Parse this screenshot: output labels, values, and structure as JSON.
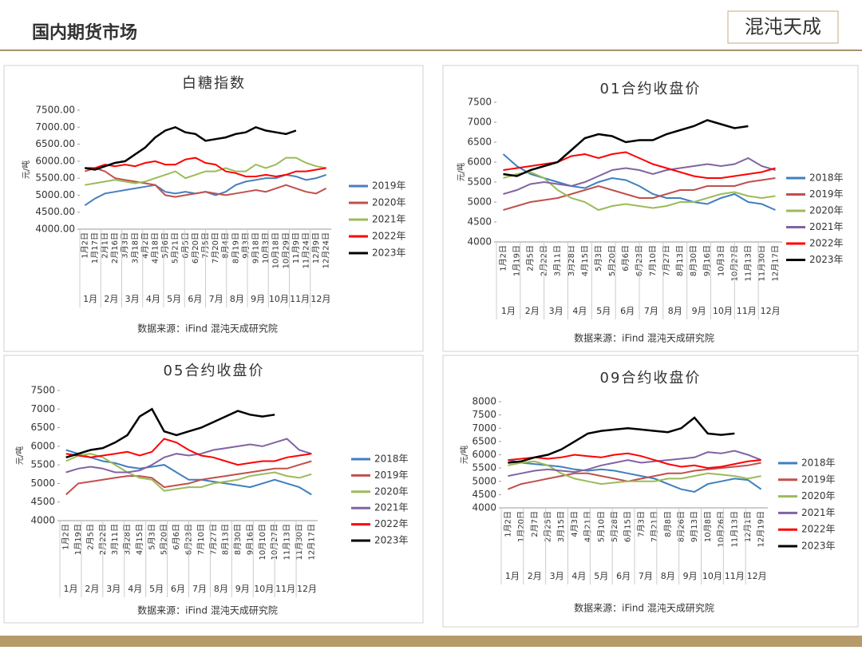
{
  "header": {
    "title": "国内期货市场",
    "logo": "混沌天成"
  },
  "chart_data": [
    {
      "type": "line",
      "title": "白糖指数",
      "y_label": "元/吨",
      "source": "数据来源：iFind 混沌天成研究院",
      "categories": [
        "1月2日",
        "1月17日",
        "2月1日",
        "2月16日",
        "3月3日",
        "3月18日",
        "4月2日",
        "4月18日",
        "5月6日",
        "5月21日",
        "6月5日",
        "6月20日",
        "7月5日",
        "7月20日",
        "8月4日",
        "8月19日",
        "9月3日",
        "9月18日",
        "10月3日",
        "10月18日",
        "10月29日",
        "11月9日",
        "11月24日",
        "12月9日",
        "12月24日"
      ],
      "month_labels": [
        "1月",
        "2月",
        "3月",
        "4月",
        "5月",
        "6月",
        "7月",
        "8月",
        "9月",
        "10月",
        "11月",
        "12月"
      ],
      "ylim": [
        4000,
        7500
      ],
      "yticks": [
        {
          "value": 4000,
          "label": "4000.00"
        },
        {
          "value": 4500,
          "label": "4500.00"
        },
        {
          "value": 5000,
          "label": "5000.00"
        },
        {
          "value": 5500,
          "label": "5500.00"
        },
        {
          "value": 6000,
          "label": "6000.00"
        },
        {
          "value": 6500,
          "label": "6500.00"
        },
        {
          "value": 7000,
          "label": "7000.00"
        },
        {
          "value": 7500,
          "label": "7500.00"
        }
      ],
      "series": [
        {
          "name": "2019年",
          "color": "#4a7ebb",
          "values": [
            4700,
            4900,
            5050,
            5100,
            5150,
            5200,
            5250,
            5300,
            5100,
            5050,
            5100,
            5050,
            5100,
            5000,
            5100,
            5300,
            5400,
            5450,
            5500,
            5500,
            5600,
            5550,
            5450,
            5500,
            5600
          ]
        },
        {
          "name": "2020年",
          "color": "#c0504d",
          "values": [
            5700,
            5800,
            5700,
            5500,
            5450,
            5400,
            5350,
            5300,
            5000,
            4950,
            5000,
            5050,
            5100,
            5050,
            5000,
            5050,
            5100,
            5150,
            5100,
            5200,
            5300,
            5200,
            5100,
            5050,
            5200
          ]
        },
        {
          "name": "2021年",
          "color": "#9bbb59",
          "values": [
            5300,
            5350,
            5400,
            5450,
            5400,
            5350,
            5400,
            5500,
            5600,
            5700,
            5500,
            5600,
            5700,
            5700,
            5800,
            5700,
            5700,
            5900,
            5800,
            5900,
            6100,
            6100,
            5950,
            5850,
            5800
          ]
        },
        {
          "name": "2022年",
          "color": "#ff0000",
          "values": [
            5800,
            5800,
            5900,
            5850,
            5900,
            5850,
            5950,
            6000,
            5900,
            5900,
            6050,
            6100,
            5950,
            5900,
            5700,
            5650,
            5550,
            5550,
            5600,
            5550,
            5600,
            5700,
            5700,
            5750,
            5800
          ]
        },
        {
          "name": "2023年",
          "color": "#000000",
          "values": [
            5800,
            5750,
            5850,
            5950,
            6000,
            6200,
            6400,
            6700,
            6900,
            7000,
            6850,
            6800,
            6600,
            6650,
            6700,
            6800,
            6850,
            7000,
            6900,
            6850,
            6800,
            6900,
            null,
            null,
            null
          ]
        }
      ]
    },
    {
      "type": "line",
      "title": "01合约收盘价",
      "y_label": "元/吨",
      "source": "数据来源：iFind 混沌天成研究院",
      "categories": [
        "1月2日",
        "1月19日",
        "2月5日",
        "2月22日",
        "3月11日",
        "3月28日",
        "4月15日",
        "5月3日",
        "5月20日",
        "6月6日",
        "6月23日",
        "7月10日",
        "7月27日",
        "8月13日",
        "8月30日",
        "9月16日",
        "10月3日",
        "10月27日",
        "11月13日",
        "11月30日",
        "12月17日"
      ],
      "month_labels": [
        "1月",
        "2月",
        "3月",
        "4月",
        "5月",
        "6月",
        "7月",
        "8月",
        "9月",
        "10月",
        "11月",
        "12月"
      ],
      "ylim": [
        4000,
        7500
      ],
      "yticks": [
        4000,
        4500,
        5000,
        5500,
        6000,
        6500,
        7000,
        7500
      ],
      "series": [
        {
          "name": "2018年",
          "color": "#3f7fbf",
          "values": [
            6200,
            5900,
            5700,
            5600,
            5500,
            5400,
            5350,
            5500,
            5600,
            5550,
            5400,
            5200,
            5100,
            5100,
            5000,
            4950,
            5100,
            5200,
            5000,
            4950,
            4800
          ]
        },
        {
          "name": "2019年",
          "color": "#c0504d",
          "values": [
            4800,
            4900,
            5000,
            5050,
            5100,
            5200,
            5300,
            5400,
            5300,
            5200,
            5100,
            5100,
            5200,
            5300,
            5300,
            5400,
            5400,
            5400,
            5500,
            5550,
            5600
          ]
        },
        {
          "name": "2020年",
          "color": "#9bbb59",
          "values": [
            5600,
            5700,
            5750,
            5600,
            5300,
            5100,
            5000,
            4800,
            4900,
            4950,
            4900,
            4850,
            4900,
            5000,
            5000,
            5100,
            5200,
            5250,
            5150,
            5100,
            5150
          ]
        },
        {
          "name": "2021年",
          "color": "#8064a2",
          "values": [
            5200,
            5300,
            5450,
            5500,
            5450,
            5400,
            5500,
            5650,
            5800,
            5850,
            5800,
            5700,
            5800,
            5850,
            5900,
            5950,
            5900,
            5950,
            6100,
            5900,
            5800
          ]
        },
        {
          "name": "2022年",
          "color": "#ff0000",
          "values": [
            5800,
            5850,
            5900,
            5950,
            6000,
            6150,
            6200,
            6100,
            6200,
            6250,
            6100,
            5950,
            5850,
            5750,
            5650,
            5600,
            5600,
            5650,
            5700,
            5750,
            5850
          ]
        },
        {
          "name": "2023年",
          "color": "#000000",
          "values": [
            5700,
            5650,
            5800,
            5900,
            6000,
            6300,
            6600,
            6700,
            6650,
            6500,
            6550,
            6550,
            6700,
            6800,
            6900,
            7050,
            6950,
            6850,
            6900,
            null,
            null
          ]
        }
      ]
    },
    {
      "type": "line",
      "title": "05合约收盘价",
      "y_label": "元/吨",
      "source": "数据来源：iFind 混沌天成研究院",
      "categories": [
        "1月2日",
        "1月19日",
        "2月5日",
        "2月22日",
        "3月11日",
        "3月28日",
        "4月15日",
        "5月3日",
        "5月20日",
        "6月6日",
        "6月23日",
        "7月10日",
        "7月27日",
        "8月13日",
        "8月30日",
        "9月16日",
        "10月10日",
        "10月27日",
        "11月13日",
        "11月30日",
        "12月17日"
      ],
      "month_labels": [
        "1月",
        "2月",
        "3月",
        "4月",
        "5月",
        "6月",
        "7月",
        "8月",
        "9月",
        "10月",
        "11月",
        "12月"
      ],
      "ylim": [
        4000,
        7500
      ],
      "yticks": [
        4000,
        4500,
        5000,
        5500,
        6000,
        6500,
        7000,
        7500
      ],
      "series": [
        {
          "name": "2018年",
          "color": "#3f7fbf",
          "values": [
            5900,
            5800,
            5700,
            5600,
            5550,
            5450,
            5400,
            5450,
            5500,
            5300,
            5100,
            5100,
            5050,
            5000,
            4950,
            4900,
            5000,
            5100,
            5000,
            4900,
            4700
          ]
        },
        {
          "name": "2019年",
          "color": "#c0504d",
          "values": [
            4700,
            5000,
            5050,
            5100,
            5150,
            5200,
            5200,
            5150,
            4900,
            4950,
            5000,
            5100,
            5150,
            5200,
            5250,
            5300,
            5350,
            5400,
            5400,
            5500,
            5600
          ]
        },
        {
          "name": "2020年",
          "color": "#9bbb59",
          "values": [
            5600,
            5750,
            5800,
            5700,
            5500,
            5300,
            5150,
            5100,
            4800,
            4850,
            4900,
            4900,
            5000,
            5050,
            5100,
            5200,
            5250,
            5300,
            5200,
            5150,
            5250
          ]
        },
        {
          "name": "2021年",
          "color": "#8064a2",
          "values": [
            5300,
            5400,
            5450,
            5400,
            5300,
            5300,
            5350,
            5500,
            5700,
            5800,
            5750,
            5800,
            5900,
            5950,
            6000,
            6050,
            6000,
            6100,
            6200,
            5900,
            5800
          ]
        },
        {
          "name": "2022年",
          "color": "#ff0000",
          "values": [
            5800,
            5750,
            5700,
            5750,
            5800,
            5850,
            5750,
            5850,
            6200,
            6100,
            5900,
            5750,
            5700,
            5600,
            5500,
            5550,
            5600,
            5600,
            5700,
            5750,
            5800
          ]
        },
        {
          "name": "2023年",
          "color": "#000000",
          "values": [
            5700,
            5800,
            5900,
            5950,
            6100,
            6300,
            6800,
            7000,
            6400,
            6300,
            6400,
            6500,
            6650,
            6800,
            6950,
            6850,
            6800,
            6850,
            null,
            null,
            null
          ]
        }
      ]
    },
    {
      "type": "line",
      "title": "09合约收盘价",
      "y_label": "元/吨",
      "source": "数据来源：iFind 混沌天成研究院",
      "categories": [
        "1月2日",
        "1月20日",
        "2月7日",
        "2月25日",
        "3月15日",
        "4月3日",
        "4月21日",
        "5月10日",
        "5月28日",
        "6月15日",
        "7月3日",
        "7月21日",
        "8月8日",
        "8月26日",
        "9月13日",
        "10月8日",
        "10月26日",
        "11月13日",
        "12月1日",
        "12月19日"
      ],
      "month_labels": [
        "1月",
        "2月",
        "3月",
        "4月",
        "5月",
        "6月",
        "7月",
        "8月",
        "9月",
        "10月",
        "11月",
        "12月"
      ],
      "ylim": [
        4000,
        8000
      ],
      "yticks": [
        4000,
        4500,
        5000,
        5500,
        6000,
        6500,
        7000,
        7500,
        8000
      ],
      "series": [
        {
          "name": "2018年",
          "color": "#3f7fbf",
          "values": [
            5800,
            5700,
            5650,
            5600,
            5550,
            5450,
            5400,
            5450,
            5400,
            5300,
            5200,
            5100,
            4900,
            4700,
            4600,
            4900,
            5000,
            5100,
            5050,
            4700
          ]
        },
        {
          "name": "2019年",
          "color": "#c0504d",
          "values": [
            4700,
            4900,
            5000,
            5100,
            5200,
            5300,
            5300,
            5200,
            5100,
            5000,
            5100,
            5200,
            5300,
            5300,
            5400,
            5450,
            5500,
            5550,
            5600,
            5700
          ]
        },
        {
          "name": "2020年",
          "color": "#9bbb59",
          "values": [
            5600,
            5700,
            5750,
            5600,
            5300,
            5100,
            5000,
            4900,
            4950,
            5000,
            5000,
            5000,
            5100,
            5100,
            5200,
            5300,
            5250,
            5200,
            5100,
            5200
          ]
        },
        {
          "name": "2021年",
          "color": "#8064a2",
          "values": [
            5200,
            5300,
            5400,
            5450,
            5400,
            5350,
            5450,
            5600,
            5700,
            5800,
            5700,
            5750,
            5800,
            5850,
            5900,
            6100,
            6050,
            6150,
            6000,
            5800
          ]
        },
        {
          "name": "2022年",
          "color": "#ff0000",
          "values": [
            5800,
            5850,
            5900,
            5850,
            5900,
            6000,
            5950,
            5900,
            6000,
            6050,
            5950,
            5800,
            5650,
            5550,
            5600,
            5500,
            5550,
            5650,
            5750,
            5800
          ]
        },
        {
          "name": "2023年",
          "color": "#000000",
          "values": [
            5700,
            5750,
            5900,
            6000,
            6200,
            6500,
            6800,
            6900,
            6950,
            7000,
            6950,
            6900,
            6850,
            7000,
            7400,
            6800,
            6750,
            6800,
            null,
            null
          ]
        }
      ]
    }
  ]
}
